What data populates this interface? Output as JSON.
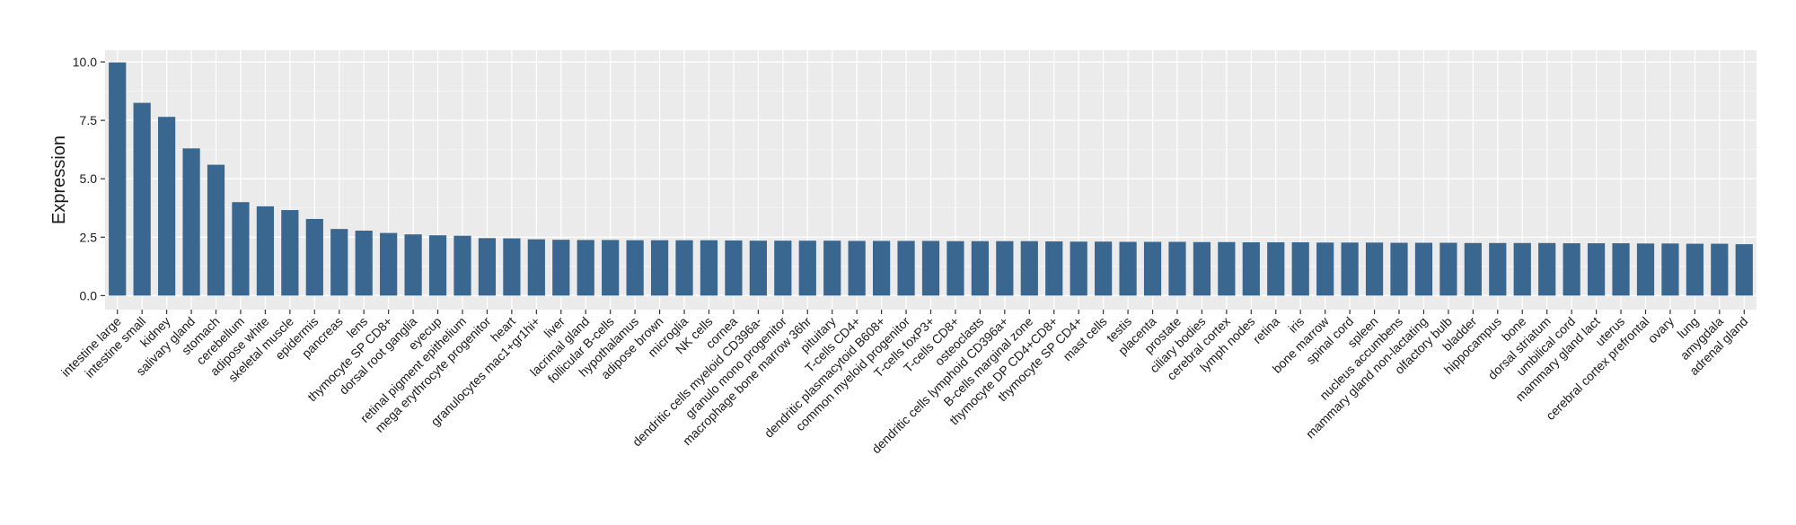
{
  "chart_data": {
    "type": "bar",
    "title": "",
    "xlabel": "",
    "ylabel": "Expression",
    "ylim": [
      -0.6,
      10.5
    ],
    "yticks": [
      0.0,
      2.5,
      5.0,
      7.5,
      10.0
    ],
    "ytick_labels": [
      "0.0",
      "2.5",
      "5.0",
      "7.5",
      "10.0"
    ],
    "grid": true,
    "legend": "none",
    "bar_color": "#3a6790",
    "panel_color": "#ebebeb",
    "grid_major_color": "#ffffff",
    "categories": [
      "intestine large",
      "intestine small",
      "kidney",
      "salivary gland",
      "stomach",
      "cerebellum",
      "adipose white",
      "skeletal muscle",
      "epidermis",
      "pancreas",
      "lens",
      "thymocyte SP CD8+",
      "dorsal root ganglia",
      "eyecup",
      "retinal pigment epithelium",
      "mega erythrocyte progenitor",
      "heart",
      "granulocytes mac1+gr1hi+",
      "liver",
      "lacrimal gland",
      "follicular B-cells",
      "hypothalamus",
      "adipose brown",
      "microglia",
      "NK cells",
      "cornea",
      "dendritic cells myeloid CD396a-",
      "granulo mono progenitor",
      "macrophage bone marrow 36hr",
      "pituitary",
      "T-cells CD4+",
      "dendritic plasmacytoid B608+",
      "common myeloid progenitor",
      "T-cells foxP3+",
      "T-cells CD8+",
      "osteoclasts",
      "dendritic cells lymphoid CD396a+",
      "B-cells marginal zone",
      "thymocyte DP CD4+CD8+",
      "thymocyte SP CD4+",
      "mast cells",
      "testis",
      "placenta",
      "prostate",
      "ciliary bodies",
      "cerebral cortex",
      "lymph nodes",
      "retina",
      "iris",
      "bone marrow",
      "spinal cord",
      "spleen",
      "nucleus accumbens",
      "mammary gland non-lactating",
      "olfactory bulb",
      "bladder",
      "hippocampus",
      "bone",
      "dorsal striatum",
      "umbilical cord",
      "mammary gland  lact",
      "uterus",
      "cerebral cortex prefrontal",
      "ovary",
      "lung",
      "amygdala",
      "adrenal gland"
    ],
    "values": [
      9.98,
      8.25,
      7.65,
      6.3,
      5.6,
      4.0,
      3.82,
      3.66,
      3.28,
      2.85,
      2.78,
      2.68,
      2.62,
      2.58,
      2.56,
      2.46,
      2.45,
      2.41,
      2.39,
      2.38,
      2.38,
      2.37,
      2.37,
      2.37,
      2.37,
      2.36,
      2.35,
      2.35,
      2.35,
      2.35,
      2.34,
      2.34,
      2.34,
      2.34,
      2.33,
      2.33,
      2.33,
      2.33,
      2.32,
      2.31,
      2.31,
      2.3,
      2.3,
      2.3,
      2.29,
      2.29,
      2.28,
      2.28,
      2.28,
      2.27,
      2.27,
      2.27,
      2.26,
      2.26,
      2.26,
      2.25,
      2.25,
      2.25,
      2.25,
      2.24,
      2.24,
      2.24,
      2.23,
      2.23,
      2.22,
      2.22,
      2.2
    ]
  }
}
